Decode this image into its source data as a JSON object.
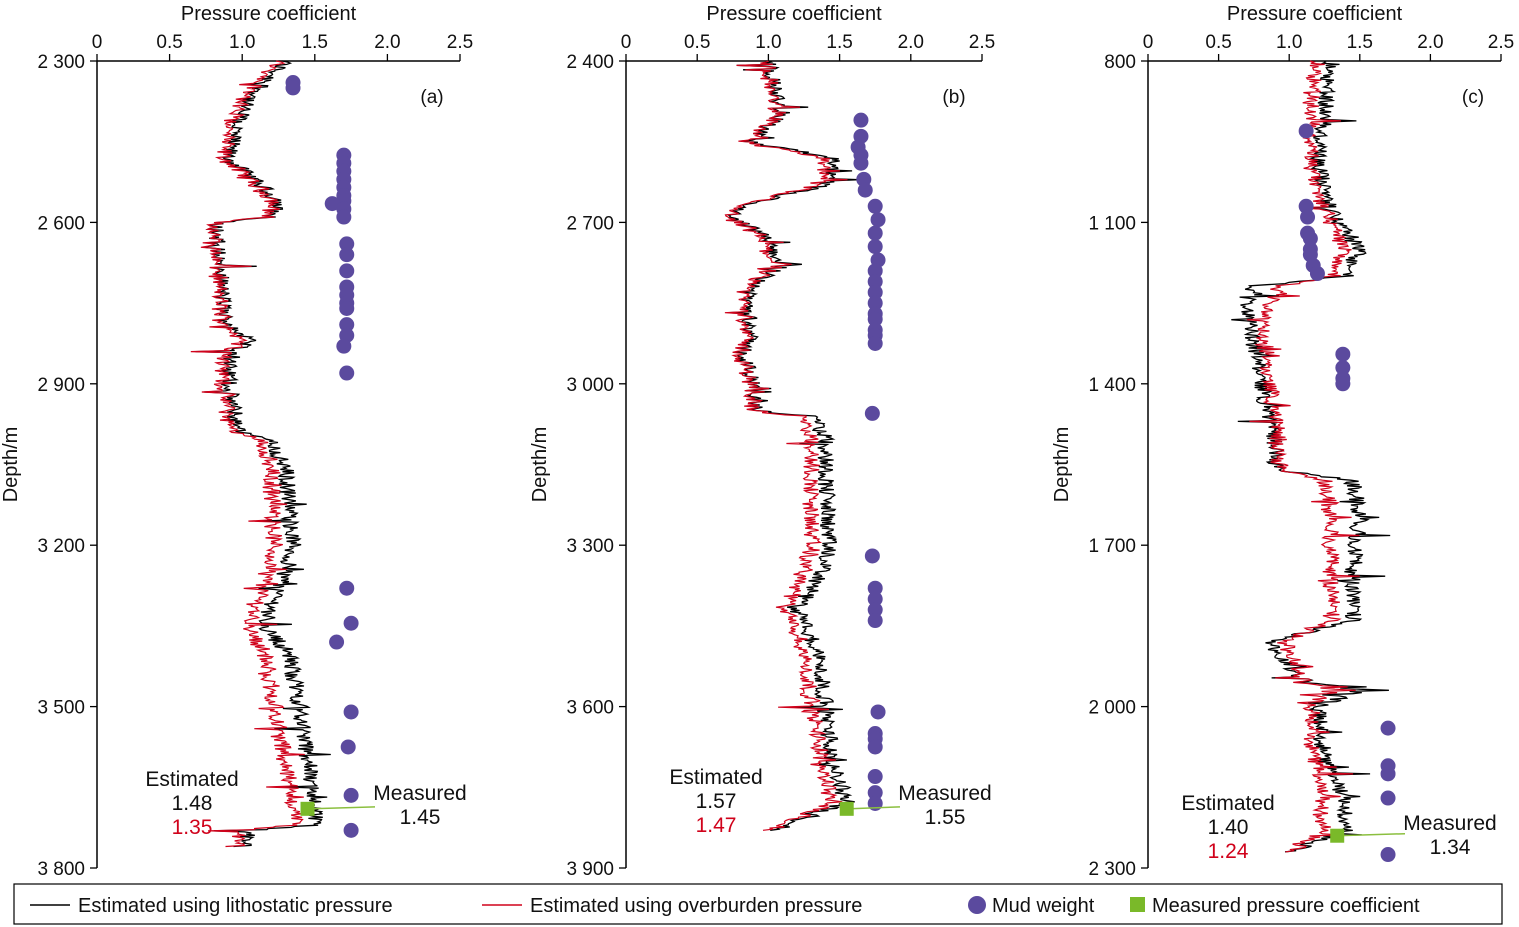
{
  "chart_data": [
    {
      "type": "line",
      "panel_label": "(a)",
      "xlabel": "Pressure coefficient",
      "ylabel": "Depth/m",
      "xlim": [
        0,
        2.5
      ],
      "ylim": [
        2300,
        3800
      ],
      "x_tick_labels": [
        "0",
        "0.5",
        "1.0",
        "1.5",
        "2.0",
        "2.5"
      ],
      "y_tick_labels": [
        "2 300",
        "2 600",
        "2 900",
        "3 200",
        "3 500",
        "3 800"
      ],
      "series": [
        {
          "name": "Estimated using lithostatic pressure",
          "color": "#000000",
          "profile": [
            [
              2300,
              1.3
            ],
            [
              2380,
              1.02
            ],
            [
              2430,
              0.95
            ],
            [
              2480,
              0.9
            ],
            [
              2560,
              1.25
            ],
            [
              2590,
              1.2
            ],
            [
              2600,
              0.82
            ],
            [
              2700,
              0.85
            ],
            [
              2780,
              0.88
            ],
            [
              2820,
              1.05
            ],
            [
              2860,
              0.9
            ],
            [
              2920,
              0.92
            ],
            [
              2990,
              0.97
            ],
            [
              3000,
              1.18
            ],
            [
              3060,
              1.3
            ],
            [
              3200,
              1.35
            ],
            [
              3250,
              1.3
            ],
            [
              3350,
              1.15
            ],
            [
              3400,
              1.32
            ],
            [
              3500,
              1.4
            ],
            [
              3650,
              1.48
            ],
            [
              3720,
              1.52
            ],
            [
              3730,
              1.05
            ],
            [
              3760,
              1.0
            ]
          ]
        },
        {
          "name": "Estimated using overburden pressure",
          "color": "#d0021b",
          "profile": [
            [
              2300,
              1.25
            ],
            [
              2380,
              0.98
            ],
            [
              2430,
              0.9
            ],
            [
              2480,
              0.87
            ],
            [
              2560,
              1.22
            ],
            [
              2590,
              1.18
            ],
            [
              2600,
              0.8
            ],
            [
              2700,
              0.83
            ],
            [
              2780,
              0.86
            ],
            [
              2820,
              1.0
            ],
            [
              2860,
              0.86
            ],
            [
              2920,
              0.88
            ],
            [
              2990,
              0.92
            ],
            [
              3000,
              1.12
            ],
            [
              3060,
              1.2
            ],
            [
              3200,
              1.22
            ],
            [
              3250,
              1.18
            ],
            [
              3350,
              1.05
            ],
            [
              3400,
              1.15
            ],
            [
              3500,
              1.22
            ],
            [
              3650,
              1.33
            ],
            [
              3720,
              1.38
            ],
            [
              3730,
              0.98
            ],
            [
              3760,
              0.95
            ]
          ]
        }
      ],
      "mud_weight": [
        [
          1.35,
          2340
        ],
        [
          1.35,
          2350
        ],
        [
          1.7,
          2475
        ],
        [
          1.7,
          2490
        ],
        [
          1.7,
          2505
        ],
        [
          1.7,
          2520
        ],
        [
          1.7,
          2535
        ],
        [
          1.7,
          2550
        ],
        [
          1.7,
          2560
        ],
        [
          1.62,
          2565
        ],
        [
          1.7,
          2575
        ],
        [
          1.7,
          2590
        ],
        [
          1.72,
          2640
        ],
        [
          1.72,
          2660
        ],
        [
          1.72,
          2690
        ],
        [
          1.72,
          2720
        ],
        [
          1.72,
          2735
        ],
        [
          1.72,
          2750
        ],
        [
          1.72,
          2760
        ],
        [
          1.72,
          2790
        ],
        [
          1.72,
          2810
        ],
        [
          1.7,
          2830
        ],
        [
          1.72,
          2880
        ],
        [
          1.72,
          3280
        ],
        [
          1.75,
          3345
        ],
        [
          1.65,
          3380
        ],
        [
          1.75,
          3510
        ],
        [
          1.73,
          3575
        ],
        [
          1.75,
          3665
        ],
        [
          1.75,
          3730
        ]
      ],
      "measured_point": [
        1.45,
        3690
      ],
      "annotations": {
        "estimated_label": "Estimated",
        "estimated_litho": "1.48",
        "estimated_over": "1.35",
        "measured_label": "Measured",
        "measured_value": "1.45"
      }
    },
    {
      "type": "line",
      "panel_label": "(b)",
      "xlabel": "Pressure coefficient",
      "ylabel": "Depth/m",
      "xlim": [
        0,
        2.5
      ],
      "ylim": [
        2400,
        3900
      ],
      "x_tick_labels": [
        "0",
        "0.5",
        "1.0",
        "1.5",
        "2.0",
        "2.5"
      ],
      "y_tick_labels": [
        "2 400",
        "2 700",
        "3 000",
        "3 300",
        "3 600",
        "3 900"
      ],
      "series": [
        {
          "name": "Estimated using lithostatic pressure",
          "color": "#000000",
          "profile": [
            [
              2400,
              1.0
            ],
            [
              2460,
              1.05
            ],
            [
              2500,
              1.1
            ],
            [
              2550,
              0.85
            ],
            [
              2580,
              1.45
            ],
            [
              2630,
              1.4
            ],
            [
              2670,
              0.8
            ],
            [
              2690,
              0.72
            ],
            [
              2720,
              0.95
            ],
            [
              2780,
              1.1
            ],
            [
              2830,
              0.85
            ],
            [
              2900,
              0.88
            ],
            [
              2950,
              0.82
            ],
            [
              3000,
              0.9
            ],
            [
              3050,
              0.9
            ],
            [
              3060,
              1.3
            ],
            [
              3100,
              1.4
            ],
            [
              3300,
              1.42
            ],
            [
              3350,
              1.38
            ],
            [
              3420,
              1.2
            ],
            [
              3500,
              1.35
            ],
            [
              3600,
              1.4
            ],
            [
              3700,
              1.45
            ],
            [
              3780,
              1.55
            ],
            [
              3800,
              1.3
            ],
            [
              3830,
              1.05
            ]
          ]
        },
        {
          "name": "Estimated using overburden pressure",
          "color": "#d0021b",
          "profile": [
            [
              2400,
              0.98
            ],
            [
              2460,
              1.02
            ],
            [
              2500,
              1.08
            ],
            [
              2550,
              0.83
            ],
            [
              2580,
              1.38
            ],
            [
              2630,
              1.35
            ],
            [
              2670,
              0.78
            ],
            [
              2690,
              0.7
            ],
            [
              2720,
              0.92
            ],
            [
              2780,
              1.05
            ],
            [
              2830,
              0.82
            ],
            [
              2900,
              0.85
            ],
            [
              2950,
              0.8
            ],
            [
              3000,
              0.88
            ],
            [
              3050,
              0.88
            ],
            [
              3060,
              1.22
            ],
            [
              3100,
              1.3
            ],
            [
              3300,
              1.3
            ],
            [
              3350,
              1.25
            ],
            [
              3420,
              1.12
            ],
            [
              3500,
              1.25
            ],
            [
              3600,
              1.3
            ],
            [
              3700,
              1.38
            ],
            [
              3780,
              1.45
            ],
            [
              3800,
              1.25
            ],
            [
              3830,
              1.0
            ]
          ]
        }
      ],
      "mud_weight": [
        [
          1.65,
          2510
        ],
        [
          1.65,
          2540
        ],
        [
          1.63,
          2560
        ],
        [
          1.65,
          2575
        ],
        [
          1.65,
          2590
        ],
        [
          1.67,
          2620
        ],
        [
          1.68,
          2640
        ],
        [
          1.75,
          2670
        ],
        [
          1.77,
          2695
        ],
        [
          1.75,
          2720
        ],
        [
          1.75,
          2745
        ],
        [
          1.77,
          2770
        ],
        [
          1.75,
          2790
        ],
        [
          1.75,
          2810
        ],
        [
          1.75,
          2830
        ],
        [
          1.75,
          2850
        ],
        [
          1.75,
          2870
        ],
        [
          1.75,
          2880
        ],
        [
          1.75,
          2900
        ],
        [
          1.75,
          2910
        ],
        [
          1.75,
          2925
        ],
        [
          1.73,
          3055
        ],
        [
          1.73,
          3320
        ],
        [
          1.75,
          3380
        ],
        [
          1.75,
          3400
        ],
        [
          1.75,
          3420
        ],
        [
          1.75,
          3440
        ],
        [
          1.77,
          3610
        ],
        [
          1.75,
          3650
        ],
        [
          1.75,
          3660
        ],
        [
          1.75,
          3675
        ],
        [
          1.75,
          3730
        ],
        [
          1.75,
          3760
        ],
        [
          1.75,
          3780
        ]
      ],
      "measured_point": [
        1.55,
        3790
      ],
      "annotations": {
        "estimated_label": "Estimated",
        "estimated_litho": "1.57",
        "estimated_over": "1.47",
        "measured_label": "Measured",
        "measured_value": "1.55"
      }
    },
    {
      "type": "line",
      "panel_label": "(c)",
      "xlabel": "Pressure coefficient",
      "ylabel": "Depth/m",
      "xlim": [
        0,
        2.5
      ],
      "ylim": [
        800,
        2300
      ],
      "x_tick_labels": [
        "0",
        "0.5",
        "1.0",
        "1.5",
        "2.0",
        "2.5"
      ],
      "y_tick_labels": [
        "800",
        "1 100",
        "1 400",
        "1 700",
        "2 000",
        "2 300"
      ],
      "series": [
        {
          "name": "Estimated using lithostatic pressure",
          "color": "#000000",
          "profile": [
            [
              800,
              1.3
            ],
            [
              900,
              1.25
            ],
            [
              980,
              1.2
            ],
            [
              1050,
              1.25
            ],
            [
              1100,
              1.35
            ],
            [
              1150,
              1.5
            ],
            [
              1200,
              1.4
            ],
            [
              1220,
              0.7
            ],
            [
              1300,
              0.72
            ],
            [
              1380,
              0.8
            ],
            [
              1420,
              0.82
            ],
            [
              1460,
              0.85
            ],
            [
              1500,
              0.9
            ],
            [
              1560,
              0.9
            ],
            [
              1580,
              1.45
            ],
            [
              1650,
              1.5
            ],
            [
              1750,
              1.45
            ],
            [
              1840,
              1.45
            ],
            [
              1880,
              0.85
            ],
            [
              1900,
              0.9
            ],
            [
              1950,
              1.1
            ],
            [
              1970,
              1.5
            ],
            [
              2000,
              1.2
            ],
            [
              2100,
              1.25
            ],
            [
              2180,
              1.4
            ],
            [
              2230,
              1.4
            ],
            [
              2270,
              1.0
            ]
          ]
        },
        {
          "name": "Estimated using overburden pressure",
          "color": "#d0021b",
          "profile": [
            [
              800,
              1.2
            ],
            [
              900,
              1.15
            ],
            [
              980,
              1.15
            ],
            [
              1050,
              1.2
            ],
            [
              1100,
              1.3
            ],
            [
              1150,
              1.4
            ],
            [
              1200,
              1.3
            ],
            [
              1220,
              0.9
            ],
            [
              1300,
              0.8
            ],
            [
              1380,
              0.85
            ],
            [
              1420,
              0.88
            ],
            [
              1460,
              0.9
            ],
            [
              1500,
              0.92
            ],
            [
              1560,
              0.93
            ],
            [
              1580,
              1.25
            ],
            [
              1650,
              1.3
            ],
            [
              1750,
              1.3
            ],
            [
              1840,
              1.3
            ],
            [
              1880,
              0.95
            ],
            [
              1900,
              1.0
            ],
            [
              1950,
              1.1
            ],
            [
              1970,
              1.3
            ],
            [
              2000,
              1.15
            ],
            [
              2100,
              1.18
            ],
            [
              2180,
              1.24
            ],
            [
              2230,
              1.24
            ],
            [
              2270,
              1.0
            ]
          ]
        }
      ],
      "mud_weight": [
        [
          1.12,
          930
        ],
        [
          1.12,
          1070
        ],
        [
          1.13,
          1090
        ],
        [
          1.13,
          1120
        ],
        [
          1.15,
          1130
        ],
        [
          1.15,
          1150
        ],
        [
          1.15,
          1160
        ],
        [
          1.17,
          1180
        ],
        [
          1.2,
          1195
        ],
        [
          1.38,
          1345
        ],
        [
          1.38,
          1370
        ],
        [
          1.38,
          1390
        ],
        [
          1.38,
          1400
        ],
        [
          1.7,
          2040
        ],
        [
          1.7,
          2110
        ],
        [
          1.7,
          2125
        ],
        [
          1.7,
          2170
        ],
        [
          1.7,
          2275
        ]
      ],
      "measured_point": [
        1.34,
        2240
      ],
      "annotations": {
        "estimated_label": "Estimated",
        "estimated_litho": "1.40",
        "estimated_over": "1.24",
        "measured_label": "Measured",
        "measured_value": "1.34"
      }
    }
  ],
  "legend": {
    "items": [
      {
        "label": "Estimated using lithostatic pressure",
        "kind": "line",
        "color": "#000000"
      },
      {
        "label": "Estimated using overburden pressure",
        "kind": "line",
        "color": "#d0021b"
      },
      {
        "label": "Mud weight",
        "kind": "circle",
        "color": "#5b4a9e"
      },
      {
        "label": "Measured pressure coefficient",
        "kind": "square",
        "color": "#7ab929"
      }
    ]
  },
  "colors": {
    "lithostatic": "#000000",
    "overburden": "#d0021b",
    "mud_weight": "#5b4a9e",
    "measured": "#7ab929",
    "measured_line": "#8bbf3f"
  }
}
